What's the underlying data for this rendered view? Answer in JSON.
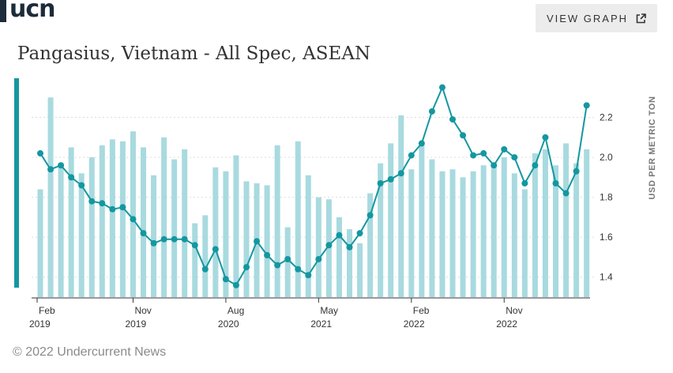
{
  "header": {
    "logo": "ucn",
    "view_graph_label": "VIEW GRAPH"
  },
  "icons": {
    "external": "external-link-icon"
  },
  "colors": {
    "bar": "#a8dadf",
    "line": "#1497a0",
    "grid": "#dddddd",
    "accent": "#1497a0"
  },
  "chart_data": {
    "type": "bar+line",
    "title": "Pangasius, Vietnam - All Spec, ASEAN",
    "ylabel": "USD PER METRIC TON",
    "ylim": [
      1.3,
      2.4
    ],
    "yticks": [
      1.4,
      1.6,
      1.8,
      2.0,
      2.2
    ],
    "ytick_labels": [
      "1.4",
      "1.6",
      "1.8",
      "2.0",
      "2.2"
    ],
    "xtick_labels": [
      {
        "month": "Feb",
        "year": "2019",
        "index": 0
      },
      {
        "month": "Nov",
        "year": "2019",
        "index": 9
      },
      {
        "month": "Aug",
        "year": "2020",
        "index": 18
      },
      {
        "month": "May",
        "year": "2021",
        "index": 27
      },
      {
        "month": "Feb",
        "year": "2022",
        "index": 36
      },
      {
        "month": "Nov",
        "year": "2022",
        "index": 45
      }
    ],
    "bars": [
      1.84,
      2.3,
      1.97,
      2.05,
      1.92,
      2.0,
      2.06,
      2.09,
      2.08,
      2.13,
      2.05,
      1.91,
      2.1,
      1.99,
      2.04,
      1.67,
      1.71,
      1.95,
      1.93,
      2.01,
      1.88,
      1.87,
      1.86,
      2.06,
      1.65,
      2.08,
      1.91,
      1.8,
      1.79,
      1.7,
      1.64,
      1.57,
      1.82,
      1.97,
      2.07,
      2.21,
      1.94,
      2.07,
      1.99,
      1.93,
      1.94,
      1.9,
      1.93,
      1.96,
      1.97,
      2.0,
      1.92,
      1.84,
      2.02,
      2.04,
      1.96,
      2.07,
      1.97,
      2.04
    ],
    "line": [
      2.02,
      1.94,
      1.96,
      1.9,
      1.86,
      1.78,
      1.77,
      1.74,
      1.75,
      1.69,
      1.62,
      1.57,
      1.59,
      1.59,
      1.59,
      1.56,
      1.44,
      1.54,
      1.39,
      1.36,
      1.45,
      1.58,
      1.51,
      1.46,
      1.49,
      1.44,
      1.41,
      1.49,
      1.56,
      1.61,
      1.55,
      1.62,
      1.71,
      1.87,
      1.89,
      1.92,
      2.01,
      2.07,
      2.23,
      2.35,
      2.19,
      2.11,
      2.01,
      2.02,
      1.96,
      2.04,
      2.0,
      1.87,
      1.96,
      2.1,
      1.87,
      1.82,
      1.93,
      2.26
    ]
  },
  "footer": {
    "copyright": "© 2022 Undercurrent News"
  }
}
